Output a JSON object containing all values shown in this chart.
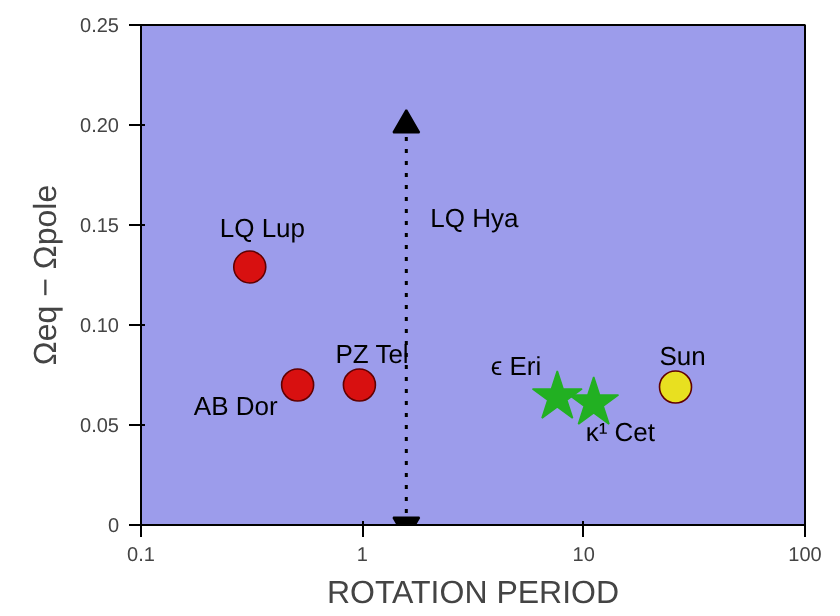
{
  "chart_data": {
    "type": "scatter",
    "xlabel": "ROTATION PERIOD",
    "ylabel": "Ωeq − Ωpole",
    "log": "x",
    "xlim": [
      0.1,
      100
    ],
    "xticks": [
      0.1,
      1,
      10,
      100
    ],
    "ylim": [
      0,
      0.25
    ],
    "yticks": [
      0,
      {
        "value": 0.05,
        "label": "0.05"
      },
      {
        "value": 0.1,
        "label": "0.10"
      },
      {
        "value": 0.15,
        "label": "0.15"
      },
      {
        "value": 0.2,
        "label": "0.20"
      },
      {
        "value": 0.25,
        "label": "0.25"
      }
    ],
    "grid": false,
    "series": [
      {
        "name": "LQ Lup",
        "color": "#d81010",
        "marker": "circle",
        "x": [
          0.31
        ],
        "values": [
          0.129
        ]
      },
      {
        "name": "AB Dor",
        "color": "#d81010",
        "marker": "circle",
        "x": [
          0.51
        ],
        "values": [
          0.07
        ]
      },
      {
        "name": "PZ Tel",
        "color": "#d81010",
        "marker": "circle",
        "x": [
          0.97
        ],
        "values": [
          0.07
        ]
      },
      {
        "name": "ϵ Eri",
        "color": "#22b022",
        "marker": "star",
        "x": [
          7.6
        ],
        "values": [
          0.064
        ]
      },
      {
        "name": "κ¹ Cet",
        "color": "#22b022",
        "marker": "star",
        "x": [
          11.1
        ],
        "values": [
          0.061
        ]
      },
      {
        "name": "Sun",
        "color": "#e8e020",
        "marker": "circle",
        "x": [
          26
        ],
        "values": [
          0.069
        ]
      },
      {
        "name": "LQ Hya",
        "type": "line",
        "color": "#000000",
        "line_style": "dotted",
        "marker": "triangle",
        "x": [
          1.58,
          1.58
        ],
        "values": [
          0,
          0.2
        ]
      }
    ]
  }
}
